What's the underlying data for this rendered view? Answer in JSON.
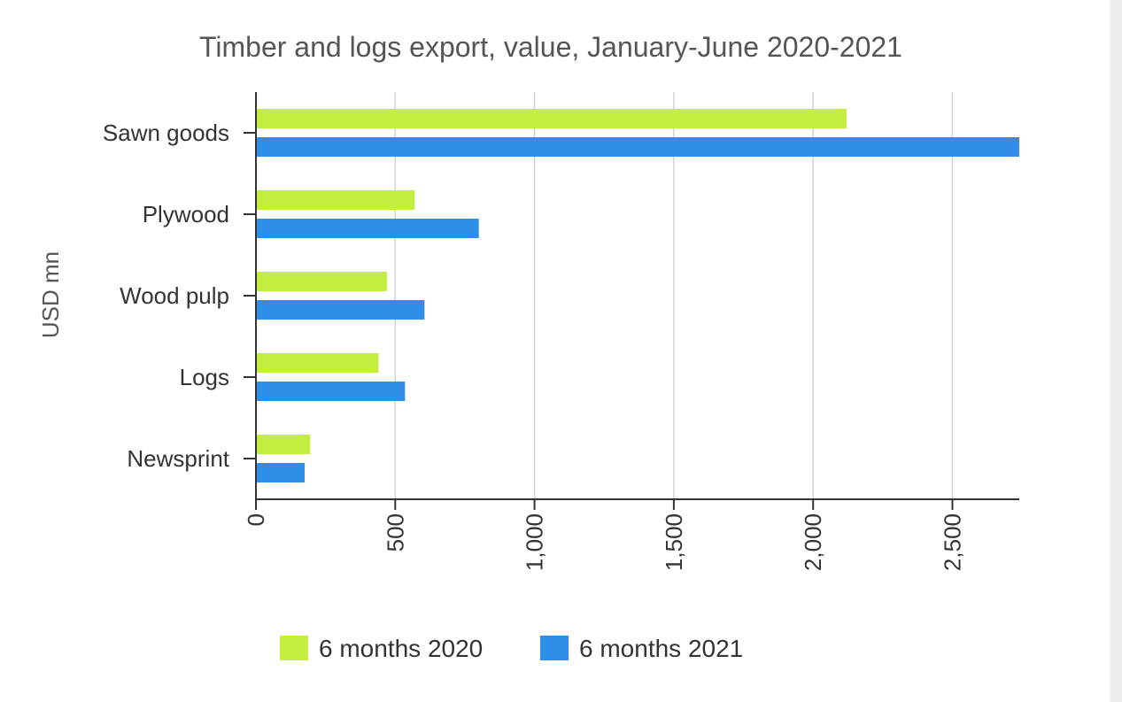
{
  "chart_data": {
    "type": "bar",
    "orientation": "horizontal",
    "title": "Timber and logs export, value, January-June 2020-2021",
    "ylabel": "USD mn",
    "xlabel": "",
    "categories": [
      "Sawn goods",
      "Plywood",
      "Wood pulp",
      "Logs",
      "Newsprint"
    ],
    "series": [
      {
        "name": "6 months 2020",
        "color": "#c4ee3f",
        "values": [
          2120,
          570,
          470,
          440,
          195
        ]
      },
      {
        "name": "6 months 2021",
        "color": "#2f8ee8",
        "values": [
          2740,
          800,
          605,
          535,
          175
        ]
      }
    ],
    "xlim": [
      0,
      2740
    ],
    "xticks": [
      0,
      500,
      1000,
      1500,
      2000,
      2500
    ],
    "xtick_labels": [
      "0",
      "500",
      "1,000",
      "1,500",
      "2,000",
      "2,500"
    ],
    "grid": "vertical",
    "legend": "bottom"
  }
}
